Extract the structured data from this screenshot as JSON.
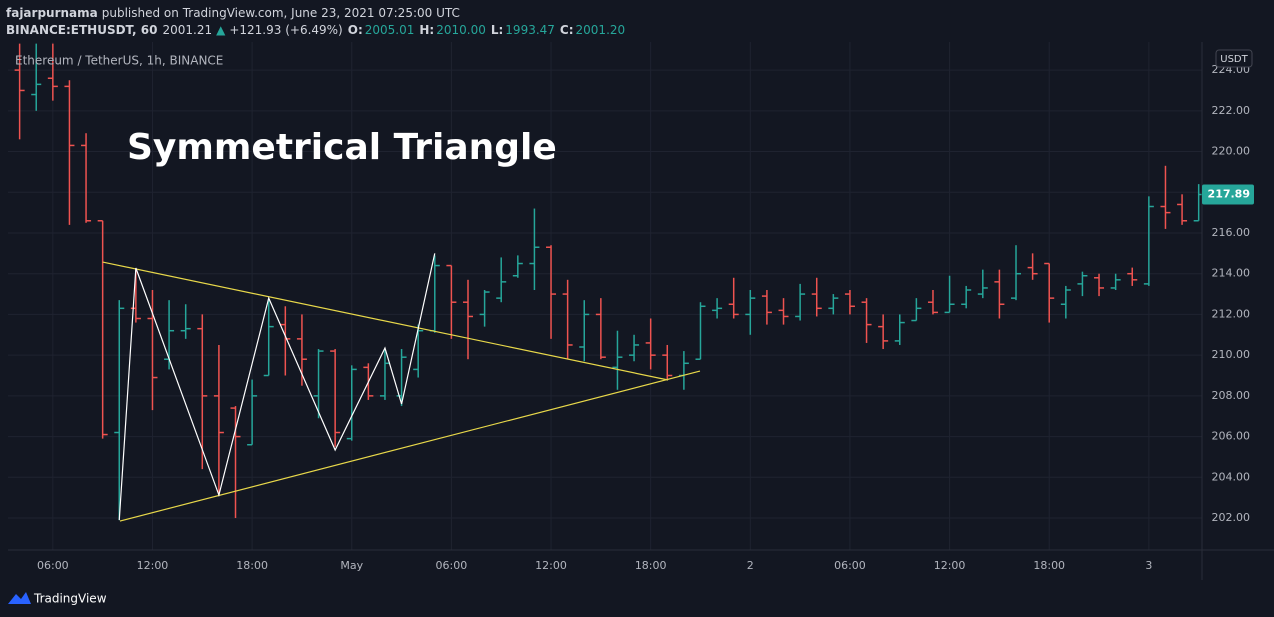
{
  "header": {
    "author": "fajarpurnama",
    "published": "published on TradingView.com, June 23, 2021 07:25:00 UTC",
    "symbol": "BINANCE:ETHUSDT, 60",
    "last": "2001.21",
    "arrow": "▲",
    "change": "+121.93 (+6.49%)",
    "ohlc": [
      {
        "label": "O:",
        "value": "2005.01"
      },
      {
        "label": "H:",
        "value": "2010.00"
      },
      {
        "label": "L:",
        "value": "1993.47"
      },
      {
        "label": "C:",
        "value": "2001.20"
      }
    ]
  },
  "chart_data": {
    "type": "ohlc",
    "legend": "Ethereum / TetherUS, 1h, BINANCE",
    "currency": "USDT",
    "annotation": "Symmetrical Triangle",
    "up_color": "#26a69a",
    "down_color": "#ef5350",
    "grid": true,
    "x": [
      4,
      5,
      6,
      7,
      8,
      9,
      10,
      11,
      12,
      13,
      14,
      15,
      16,
      17,
      18,
      19,
      20,
      21,
      22,
      23,
      24,
      25,
      26,
      27,
      28,
      29,
      30,
      31,
      32,
      33,
      34,
      35,
      36,
      37,
      38,
      39,
      40,
      41,
      42,
      43,
      44,
      45,
      46,
      47,
      48,
      49,
      50,
      51,
      52,
      53,
      54,
      55,
      56,
      57,
      58,
      59,
      60,
      61,
      62,
      63,
      64,
      65,
      66,
      67,
      68,
      69,
      70,
      71,
      72,
      73,
      74,
      75
    ],
    "open": [
      224.0,
      222.8,
      223.6,
      223.2,
      220.3,
      216.6,
      206.2,
      212.3,
      211.8,
      209.8,
      211.2,
      211.3,
      208.0,
      207.4,
      205.6,
      209.0,
      211.5,
      210.8,
      208.0,
      210.2,
      205.9,
      209.4,
      208.0,
      208.0,
      209.3,
      211.2,
      214.4,
      212.6,
      212.0,
      212.8,
      213.9,
      214.5,
      215.3,
      213.0,
      210.4,
      212.0,
      209.4,
      210.0,
      210.6,
      210.0,
      209.0,
      209.8,
      212.2,
      212.5,
      212.0,
      212.9,
      212.2,
      211.9,
      213.0,
      212.3,
      213.0,
      212.6,
      211.4,
      210.7,
      211.7,
      212.6,
      212.1,
      212.5,
      213.0,
      213.6,
      212.8,
      214.3,
      214.5,
      212.5,
      213.5,
      213.8,
      213.3,
      214.0,
      213.5,
      217.3,
      217.4,
      216.6
    ],
    "high": [
      225.3,
      225.3,
      225.3,
      223.5,
      220.9,
      216.6,
      212.7,
      214.2,
      213.2,
      212.7,
      212.5,
      212.0,
      210.5,
      207.5,
      208.8,
      212.7,
      212.4,
      212.0,
      210.3,
      210.3,
      209.5,
      209.6,
      210.3,
      210.3,
      211.5,
      214.9,
      214.4,
      213.7,
      213.2,
      214.8,
      214.9,
      217.2,
      215.4,
      213.7,
      212.7,
      212.8,
      211.2,
      211.0,
      211.8,
      210.5,
      210.2,
      212.6,
      212.8,
      213.8,
      213.2,
      213.2,
      212.8,
      213.5,
      213.8,
      213.0,
      213.2,
      212.8,
      212.0,
      212.0,
      212.8,
      213.2,
      213.9,
      213.4,
      214.2,
      214.2,
      215.4,
      215.0,
      214.5,
      213.4,
      214.1,
      214.0,
      214.0,
      214.3,
      217.8,
      219.3,
      217.9,
      218.4
    ],
    "low": [
      220.6,
      222.0,
      222.5,
      216.4,
      216.5,
      205.9,
      201.9,
      211.6,
      207.3,
      209.3,
      210.8,
      204.4,
      203.1,
      202.0,
      205.6,
      209.0,
      209.0,
      208.5,
      206.9,
      205.5,
      205.8,
      207.8,
      207.8,
      207.5,
      208.9,
      211.1,
      210.8,
      209.8,
      211.4,
      212.6,
      213.8,
      213.2,
      210.8,
      209.8,
      209.7,
      209.8,
      208.3,
      209.7,
      209.3,
      208.8,
      208.3,
      209.8,
      211.8,
      211.8,
      211.0,
      211.5,
      211.5,
      211.7,
      211.9,
      212.0,
      212.0,
      210.6,
      210.3,
      210.5,
      211.7,
      212.0,
      212.1,
      212.3,
      212.8,
      211.8,
      212.7,
      213.7,
      211.6,
      211.8,
      212.9,
      212.9,
      213.2,
      213.4,
      213.4,
      216.2,
      216.4,
      216.6
    ],
    "close": [
      223.0,
      223.3,
      223.2,
      220.3,
      216.6,
      206.1,
      212.3,
      211.8,
      208.9,
      211.2,
      211.3,
      208.0,
      206.2,
      206.0,
      208.0,
      211.4,
      210.8,
      209.8,
      210.2,
      206.2,
      209.3,
      208.0,
      209.6,
      209.9,
      211.2,
      214.4,
      212.6,
      211.9,
      213.1,
      213.6,
      214.5,
      215.3,
      213.0,
      210.5,
      212.0,
      209.9,
      209.9,
      210.5,
      210.0,
      209.0,
      209.6,
      212.4,
      212.3,
      212.0,
      212.8,
      212.1,
      211.9,
      213.0,
      212.3,
      212.8,
      212.4,
      211.5,
      210.7,
      211.6,
      212.3,
      212.1,
      212.5,
      213.2,
      213.3,
      212.5,
      214.0,
      214.0,
      212.8,
      213.2,
      213.9,
      213.3,
      213.7,
      213.7,
      217.3,
      217.0,
      216.6,
      217.89
    ],
    "last_price": 217.89,
    "xlim": [
      3.3,
      75.2
    ],
    "xticks": [
      {
        "value": 6,
        "label": "06:00"
      },
      {
        "value": 12,
        "label": "12:00"
      },
      {
        "value": 18,
        "label": "18:00"
      },
      {
        "value": 24,
        "label": "May"
      },
      {
        "value": 30,
        "label": "06:00"
      },
      {
        "value": 36,
        "label": "12:00"
      },
      {
        "value": 42,
        "label": "18:00"
      },
      {
        "value": 48,
        "label": "2"
      },
      {
        "value": 54,
        "label": "06:00"
      },
      {
        "value": 60,
        "label": "12:00"
      },
      {
        "value": 66,
        "label": "18:00"
      },
      {
        "value": 72,
        "label": "3"
      }
    ],
    "ylim": [
      200.43,
      225.38
    ],
    "yticks": [
      {
        "value": 202,
        "label": "202.00"
      },
      {
        "value": 204,
        "label": "204.00"
      },
      {
        "value": 206,
        "label": "206.00"
      },
      {
        "value": 208,
        "label": "208.00"
      },
      {
        "value": 210,
        "label": "210.00"
      },
      {
        "value": 212,
        "label": "212.00"
      },
      {
        "value": 214,
        "label": "214.00"
      },
      {
        "value": 216,
        "label": "216.00"
      },
      {
        "value": 218,
        "label": "218.00"
      },
      {
        "value": 220,
        "label": "220.00"
      },
      {
        "value": 222,
        "label": "222.00"
      },
      {
        "value": 224,
        "label": "224.00"
      }
    ],
    "lines": [
      {
        "color": "#e8d84a",
        "x": [
          9,
          43.05
        ],
        "y": [
          214.57,
          208.78
        ]
      },
      {
        "color": "#e8d84a",
        "x": [
          10.04,
          44.97
        ],
        "y": [
          201.85,
          209.22
        ]
      },
      {
        "color": "#ffffff",
        "x": [
          10,
          11,
          16,
          19,
          23,
          26,
          27,
          29
        ],
        "y": [
          201.9,
          214.28,
          203.13,
          212.8,
          205.34,
          210.35,
          207.6,
          215.0
        ]
      }
    ]
  },
  "footer": {
    "brand": "TradingView"
  }
}
